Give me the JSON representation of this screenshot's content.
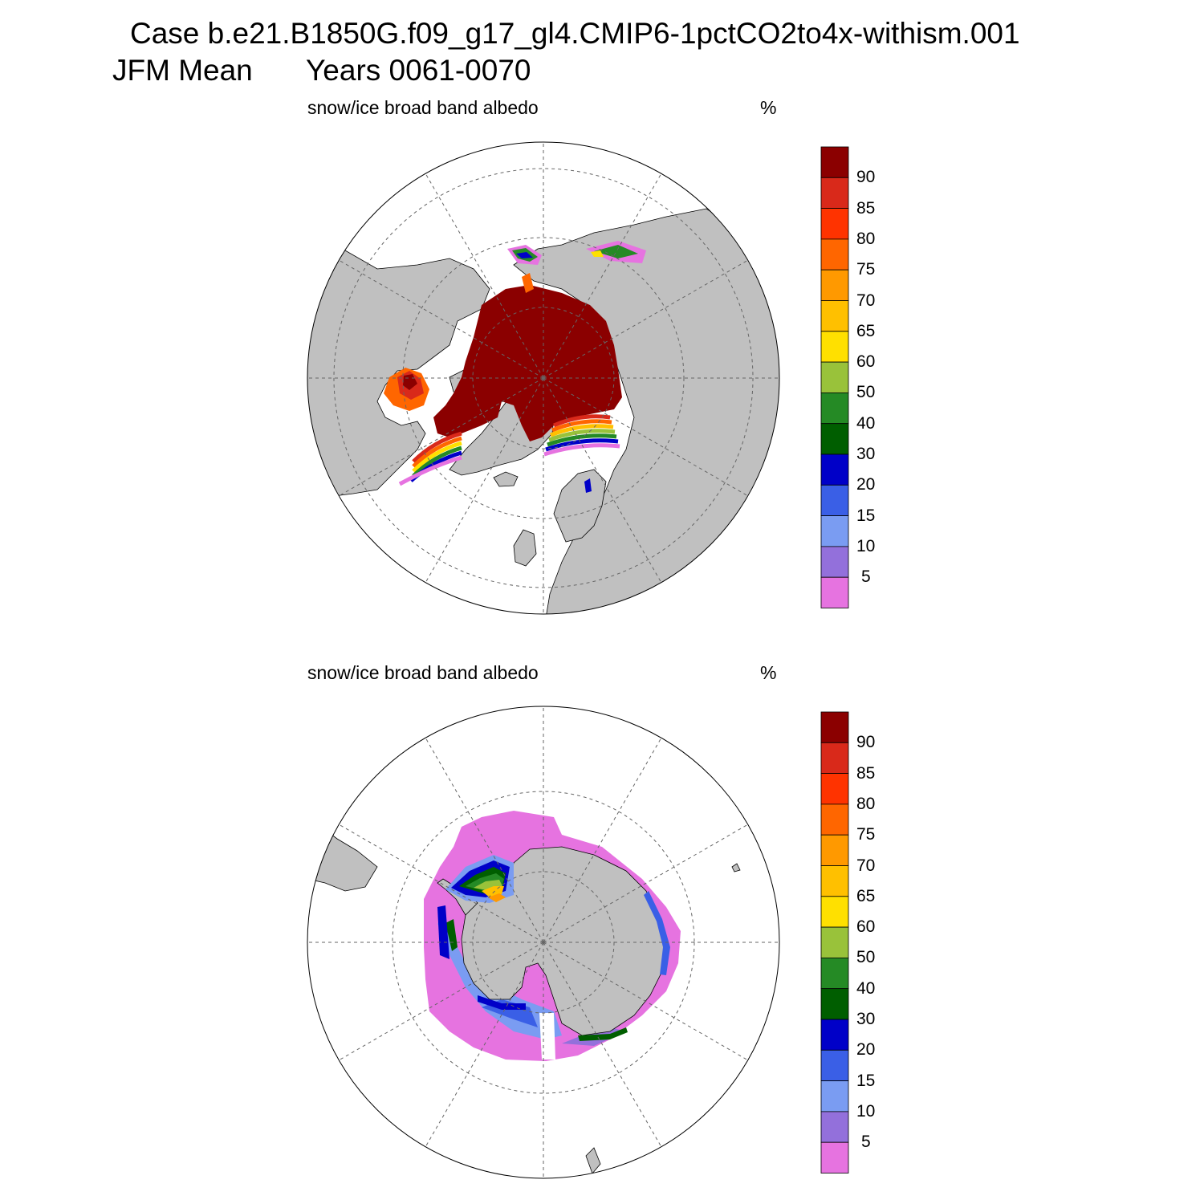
{
  "figure": {
    "case_title": "Case b.e21.B1850G.f09_g17_gl4.CMIP6-1pctCO2to4x-withism.001",
    "season_label": "JFM Mean",
    "years_label": "Years 0061-0070"
  },
  "panels": [
    {
      "id": "north",
      "hemisphere": "Northern Hemisphere (polar stereographic)",
      "variable_title": "snow/ice broad band albedo",
      "units": "%"
    },
    {
      "id": "south",
      "hemisphere": "Southern Hemisphere (polar stereographic)",
      "variable_title": "snow/ice broad band albedo",
      "units": "%"
    }
  ],
  "colorbar": {
    "tick_labels": [
      "90",
      "85",
      "80",
      "75",
      "70",
      "65",
      "60",
      "50",
      "40",
      "30",
      "20",
      "15",
      "10",
      "5"
    ],
    "colors_top_to_bottom": [
      "#8b0000",
      "#d9291a",
      "#ff3300",
      "#ff6600",
      "#ff9900",
      "#ffc000",
      "#ffe000",
      "#99c23a",
      "#258a25",
      "#005e00",
      "#0000c8",
      "#3a5fe6",
      "#7a9cf2",
      "#9370db",
      "#e673e0"
    ]
  },
  "map_colors": {
    "land": "#c0c0c0",
    "ocean": "#ffffff",
    "coast": "#000000",
    "graticule": "#666666"
  }
}
